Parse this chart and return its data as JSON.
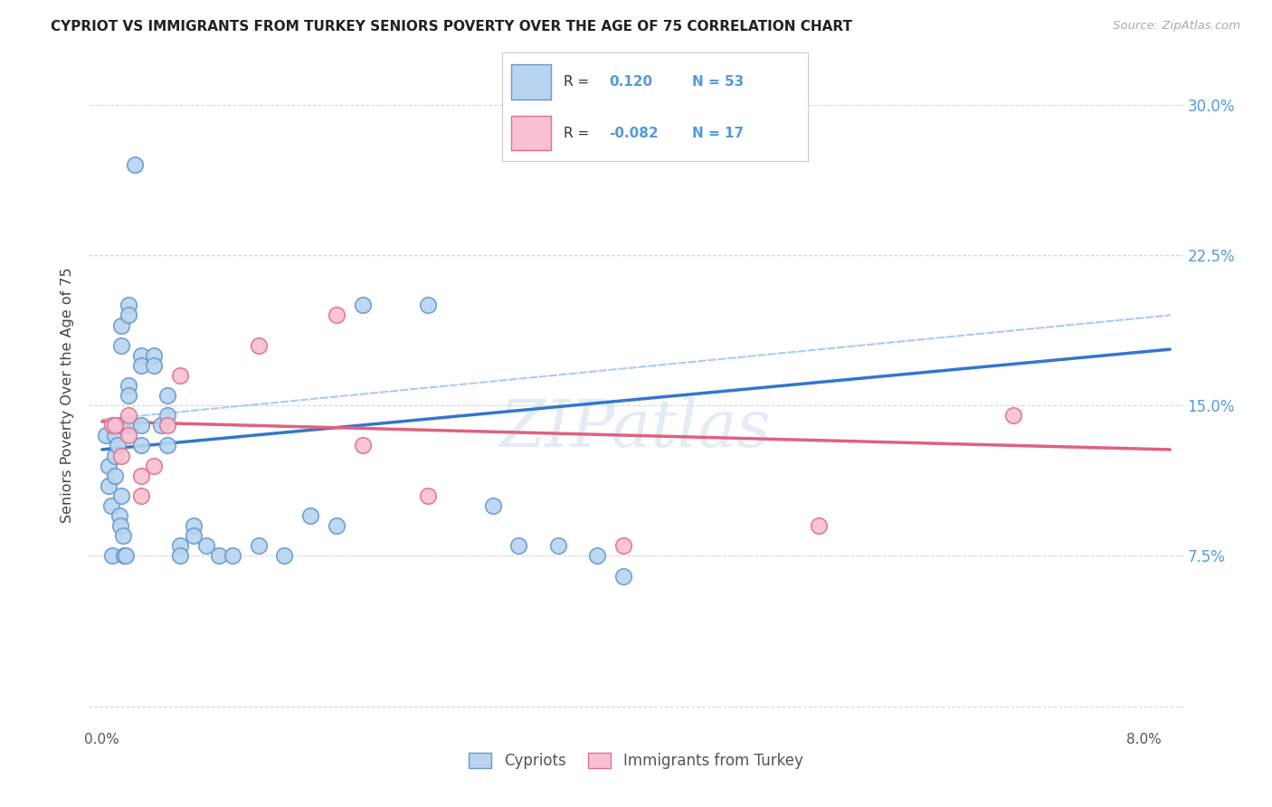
{
  "title": "CYPRIOT VS IMMIGRANTS FROM TURKEY SENIORS POVERTY OVER THE AGE OF 75 CORRELATION CHART",
  "source": "Source: ZipAtlas.com",
  "ylabel": "Seniors Poverty Over the Age of 75",
  "ytick_labels": [
    "",
    "7.5%",
    "15.0%",
    "22.5%",
    "30.0%"
  ],
  "ytick_values": [
    0.0,
    0.075,
    0.15,
    0.225,
    0.3
  ],
  "xtick_values": [
    0.0,
    0.01,
    0.02,
    0.03,
    0.04,
    0.05,
    0.06,
    0.07,
    0.08
  ],
  "xmin": -0.001,
  "xmax": 0.083,
  "ymin": -0.01,
  "ymax": 0.32,
  "legend_label_cypriot": "Cypriots",
  "legend_label_turkey": "Immigrants from Turkey",
  "R_cypriot": "0.120",
  "N_cypriot": "53",
  "R_turkey": "-0.082",
  "N_turkey": "17",
  "color_cypriot_fill": "#b8d4f0",
  "color_cypriot_edge": "#6699cc",
  "color_turkey_fill": "#f8c0d0",
  "color_turkey_edge": "#e07090",
  "color_line_cypriot": "#3377cc",
  "color_line_turkey": "#e06080",
  "color_line_dashed": "#aaccee",
  "watermark_text": "ZIPatlas",
  "cypriot_x": [
    0.0003,
    0.0005,
    0.0005,
    0.0007,
    0.0008,
    0.001,
    0.001,
    0.001,
    0.001,
    0.0012,
    0.0013,
    0.0014,
    0.0015,
    0.0015,
    0.0015,
    0.0015,
    0.0016,
    0.0017,
    0.0018,
    0.002,
    0.002,
    0.002,
    0.002,
    0.0022,
    0.0025,
    0.003,
    0.003,
    0.003,
    0.003,
    0.004,
    0.004,
    0.0045,
    0.005,
    0.005,
    0.005,
    0.006,
    0.006,
    0.007,
    0.007,
    0.008,
    0.009,
    0.01,
    0.012,
    0.014,
    0.016,
    0.018,
    0.02,
    0.025,
    0.03,
    0.032,
    0.035,
    0.038,
    0.04
  ],
  "cypriot_y": [
    0.135,
    0.12,
    0.11,
    0.1,
    0.075,
    0.14,
    0.135,
    0.125,
    0.115,
    0.13,
    0.095,
    0.09,
    0.19,
    0.18,
    0.14,
    0.105,
    0.085,
    0.075,
    0.075,
    0.2,
    0.195,
    0.16,
    0.155,
    0.14,
    0.27,
    0.175,
    0.17,
    0.14,
    0.13,
    0.175,
    0.17,
    0.14,
    0.155,
    0.145,
    0.13,
    0.08,
    0.075,
    0.09,
    0.085,
    0.08,
    0.075,
    0.075,
    0.08,
    0.075,
    0.095,
    0.09,
    0.2,
    0.2,
    0.1,
    0.08,
    0.08,
    0.075,
    0.065
  ],
  "turkey_x": [
    0.0008,
    0.001,
    0.0015,
    0.002,
    0.002,
    0.003,
    0.003,
    0.004,
    0.005,
    0.006,
    0.012,
    0.018,
    0.02,
    0.025,
    0.04,
    0.055,
    0.07
  ],
  "turkey_y": [
    0.14,
    0.14,
    0.125,
    0.145,
    0.135,
    0.115,
    0.105,
    0.12,
    0.14,
    0.165,
    0.18,
    0.195,
    0.13,
    0.105,
    0.08,
    0.09,
    0.145
  ],
  "line_cypriot_x0": 0.0,
  "line_cypriot_y0": 0.128,
  "line_cypriot_x1": 0.082,
  "line_cypriot_y1": 0.178,
  "line_turkey_x0": 0.0,
  "line_turkey_y0": 0.142,
  "line_turkey_x1": 0.082,
  "line_turkey_y1": 0.128,
  "line_dashed_x0": 0.0,
  "line_dashed_y0": 0.143,
  "line_dashed_x1": 0.082,
  "line_dashed_y1": 0.195
}
